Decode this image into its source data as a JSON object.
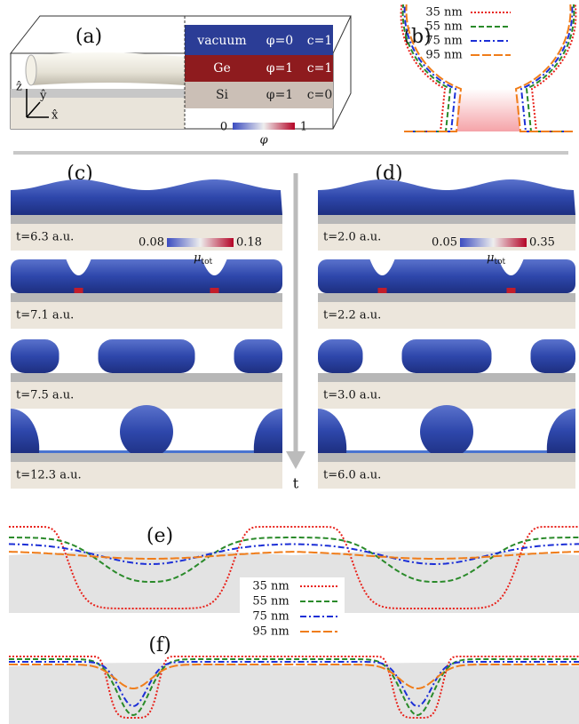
{
  "panel_a": {
    "label": "(a)",
    "axes": [
      "ẑ",
      "ŷ",
      "x̂"
    ],
    "layers": [
      {
        "name": "vacuum",
        "phi": "φ=0",
        "c": "c=1"
      },
      {
        "name": "Ge",
        "phi": "φ=1",
        "c": "c=1"
      },
      {
        "name": "Si",
        "phi": "φ=1",
        "c": "c=0"
      }
    ],
    "colorbar": {
      "min": "0",
      "max": "1",
      "label": "φ"
    }
  },
  "legend": [
    {
      "label": "35 nm",
      "color": "#e8221b",
      "style": "dotted"
    },
    {
      "label": "55 nm",
      "color": "#2a8a2a",
      "style": "dashed"
    },
    {
      "label": "75 nm",
      "color": "#1c2fd6",
      "style": "dashdot"
    },
    {
      "label": "95 nm",
      "color": "#f07d1a",
      "style": "longdash"
    }
  ],
  "panel_b": {
    "label": "(b)"
  },
  "panel_c": {
    "label": "(c)",
    "colorbar": {
      "min": "0.08",
      "max": "0.18",
      "symbol": "μ",
      "subscript": "tot"
    },
    "times": [
      "t=6.3 a.u.",
      "t=7.1 a.u.",
      "t=7.5 a.u.",
      "t=12.3 a.u."
    ]
  },
  "panel_d": {
    "label": "(d)",
    "colorbar": {
      "min": "0.05",
      "max": "0.35",
      "symbol": "μ",
      "subscript": "tot"
    },
    "times": [
      "t=2.0 a.u.",
      "t=2.2 a.u.",
      "t=3.0 a.u.",
      "t=6.0 a.u."
    ]
  },
  "time_axis": "t",
  "panel_e": {
    "label": "(e)"
  },
  "panel_f": {
    "label": "(f)"
  }
}
